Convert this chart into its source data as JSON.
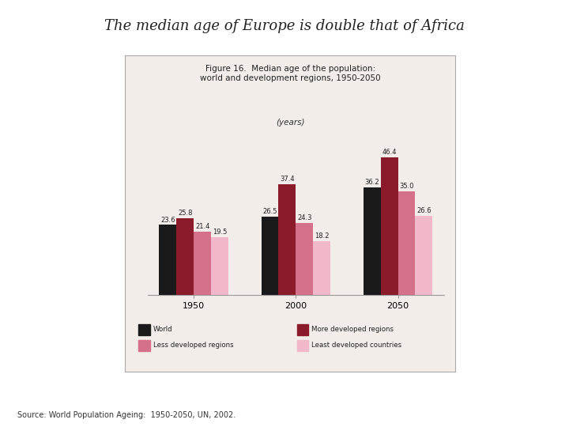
{
  "title_main": "The median age of Europe is double that of Africa",
  "chart_title": "Figure 16.  Median age of the population:\nworld and development regions, 1950-2050",
  "ylabel": "(years)",
  "source": "Source: World Population Ageing:  1950-2050, UN, 2002.",
  "years": [
    "1950",
    "2000",
    "2050"
  ],
  "series": {
    "World": [
      23.6,
      26.5,
      36.2
    ],
    "More developed regions": [
      25.8,
      37.4,
      46.4
    ],
    "Less developed regions": [
      21.4,
      24.3,
      35.0
    ],
    "Least developed countries": [
      19.5,
      18.2,
      26.6
    ]
  },
  "colors": {
    "World": "#1a1a1a",
    "More developed regions": "#8b1a2a",
    "Less developed regions": "#d4708a",
    "Least developed countries": "#f0b8c8"
  },
  "bar_width": 0.17,
  "ylim": [
    0,
    52
  ],
  "chart_bg": "#f2ede8",
  "outer_bg": "#ffffff",
  "legend_order": [
    "World",
    "More developed regions",
    "Less developed regions",
    "Least developed countries"
  ]
}
